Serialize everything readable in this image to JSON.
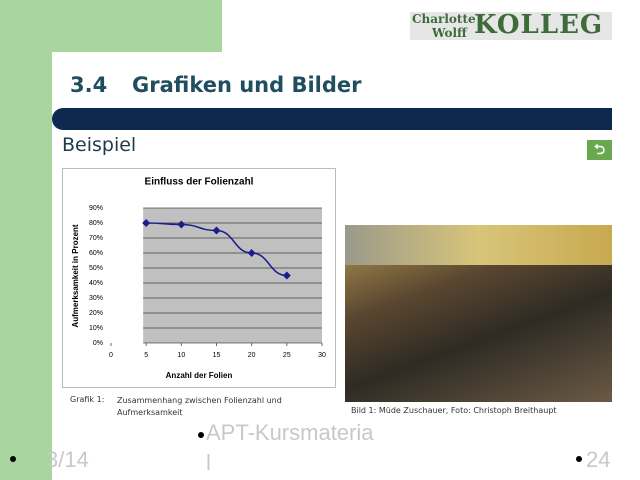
{
  "logo": {
    "line1": "Charlotte",
    "line2": "Wolff",
    "name": "KOLLEG"
  },
  "header": {
    "number": "3.4",
    "title": "Grafiken und Bilder"
  },
  "subtitle": "Beispiel",
  "chart_data": {
    "type": "line",
    "title": "Einfluss der Folienzahl",
    "x_label": "Anzahl der Folien",
    "y_label": "Aufmerksamkeit in Prozent",
    "x": [
      5,
      10,
      15,
      20,
      25
    ],
    "values": [
      80,
      79,
      75,
      60,
      45
    ],
    "color": "#1c1c8c",
    "xlim": [
      0,
      30
    ],
    "xticks": [
      0,
      5,
      10,
      15,
      20,
      25,
      30
    ],
    "ylim": [
      0,
      90
    ],
    "yticks": [
      {
        "value": 0,
        "label": "0%"
      },
      {
        "value": 10,
        "label": "10%"
      },
      {
        "value": 20,
        "label": "20%"
      },
      {
        "value": 30,
        "label": "30%"
      },
      {
        "value": 40,
        "label": "40%"
      },
      {
        "value": 50,
        "label": "50%"
      },
      {
        "value": 60,
        "label": "60%"
      },
      {
        "value": 70,
        "label": "70%"
      },
      {
        "value": 80,
        "label": "80%"
      },
      {
        "value": 90,
        "label": "90%"
      }
    ],
    "grid": true
  },
  "captions": {
    "chart_label": "Grafik 1:",
    "chart_text": "Zusammenhang zwischen Folienzahl und Aufmerksamkeit",
    "image": "Bild 1: Müde Zuschauer, Foto: Christoph Breithaupt"
  },
  "footer": {
    "date": "3/14",
    "course": "APT-Kursmaterial",
    "page": "24"
  }
}
